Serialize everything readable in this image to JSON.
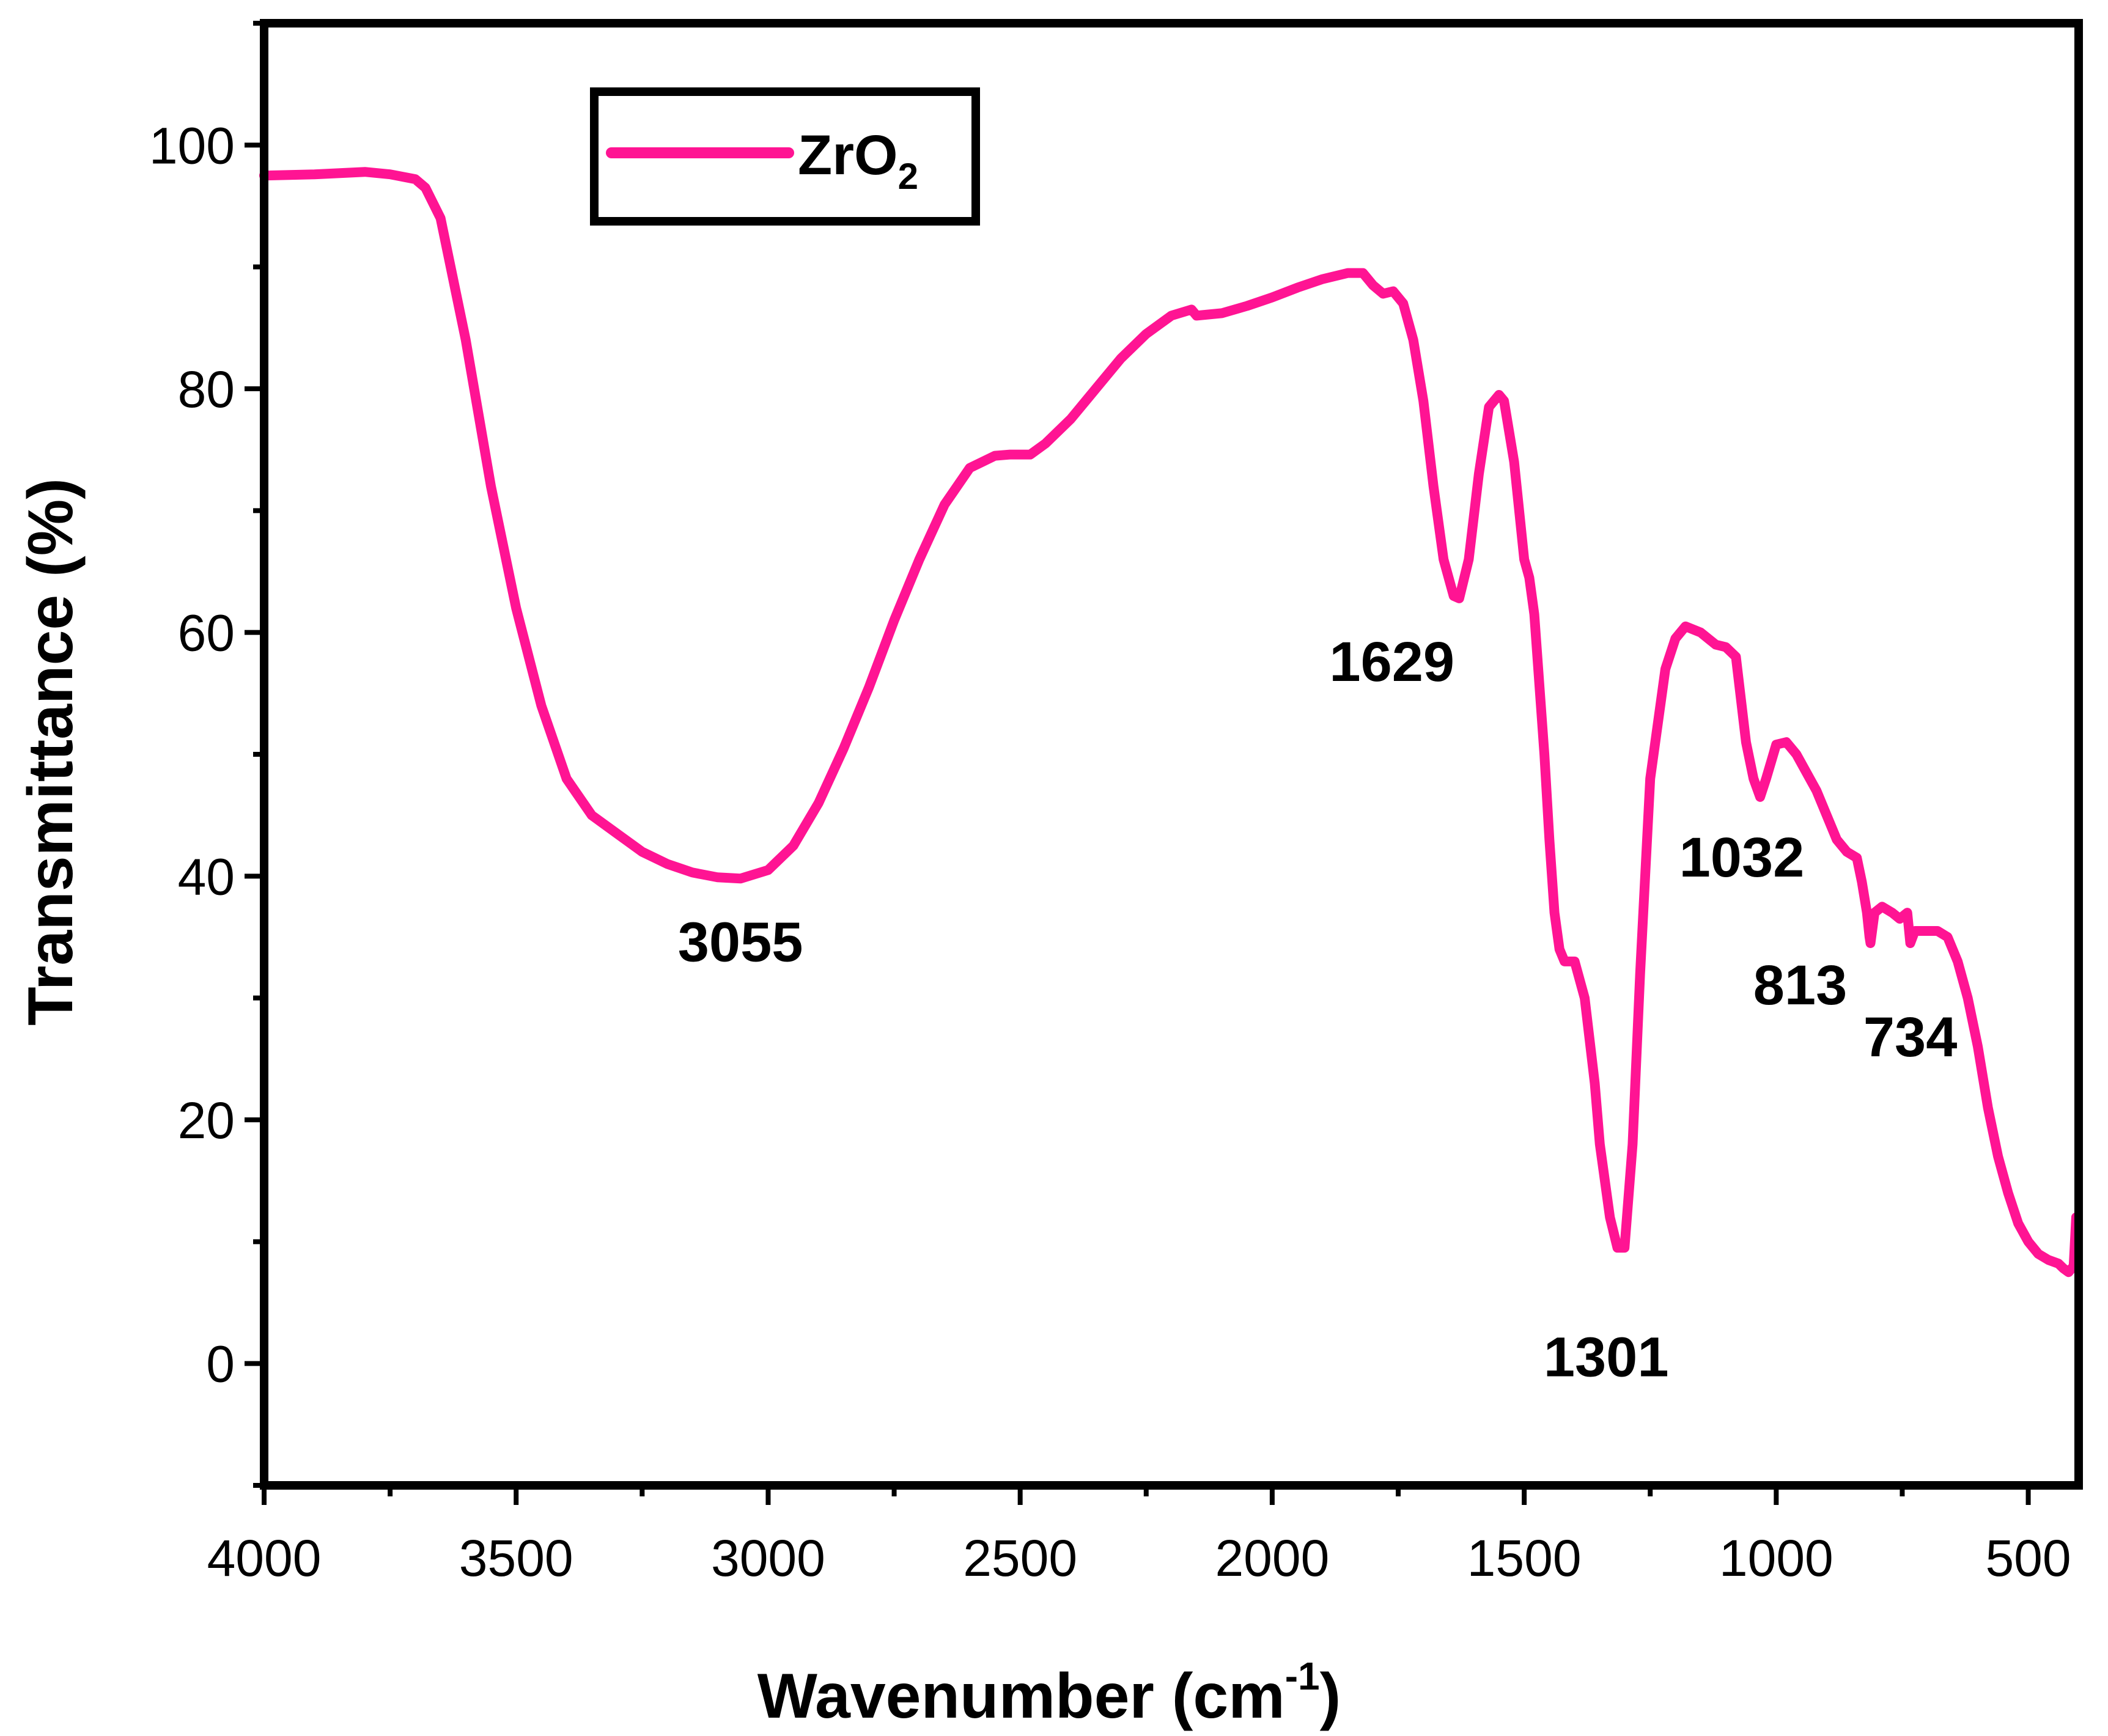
{
  "chart_data": {
    "type": "line",
    "title": "",
    "xlabel": "Wavenumber (cm",
    "xlabel_sup": "-1",
    "xlabel_close": ")",
    "ylabel": "Transmittance (%)",
    "xlim": [
      4000,
      400
    ],
    "ylim": [
      -10,
      110
    ],
    "x_ticks": [
      4000,
      3500,
      3000,
      2500,
      2000,
      1500,
      1000,
      500
    ],
    "x_tick_labels": [
      "4000",
      "3500",
      "3000",
      "2500",
      "2000",
      "1500",
      "1000",
      "500"
    ],
    "y_ticks": [
      0,
      20,
      40,
      60,
      80,
      100
    ],
    "y_tick_labels": [
      "0",
      "20",
      "40",
      "60",
      "80",
      "100"
    ],
    "legend": {
      "position": "top-left",
      "label_main": "ZrO",
      "label_sub": "2"
    },
    "series": [
      {
        "name": "ZrO2",
        "color": "#ff1493",
        "x": [
          4000,
          3900,
          3800,
          3750,
          3700,
          3680,
          3650,
          3600,
          3550,
          3500,
          3450,
          3400,
          3350,
          3300,
          3250,
          3200,
          3150,
          3100,
          3055,
          3000,
          2950,
          2900,
          2850,
          2800,
          2750,
          2700,
          2650,
          2600,
          2550,
          2520,
          2480,
          2450,
          2400,
          2350,
          2300,
          2250,
          2200,
          2160,
          2150,
          2100,
          2050,
          2000,
          1950,
          1900,
          1850,
          1820,
          1800,
          1780,
          1760,
          1740,
          1720,
          1700,
          1680,
          1660,
          1640,
          1629,
          1610,
          1590,
          1570,
          1550,
          1540,
          1520,
          1500,
          1490,
          1480,
          1460,
          1450,
          1440,
          1430,
          1420,
          1400,
          1380,
          1360,
          1350,
          1330,
          1315,
          1301,
          1285,
          1270,
          1250,
          1220,
          1200,
          1180,
          1150,
          1120,
          1100,
          1080,
          1060,
          1045,
          1032,
          1020,
          1000,
          980,
          960,
          940,
          920,
          900,
          880,
          860,
          840,
          830,
          820,
          815,
          813,
          805,
          790,
          770,
          755,
          740,
          734,
          725,
          700,
          680,
          660,
          640,
          620,
          600,
          580,
          560,
          540,
          520,
          500,
          480,
          460,
          440,
          430,
          420,
          410,
          405
        ],
        "y": [
          97.5,
          97.6,
          97.8,
          97.6,
          97.2,
          96.5,
          94,
          84,
          72,
          62,
          54,
          48,
          45,
          43.5,
          42,
          41,
          40.3,
          39.9,
          39.8,
          40.5,
          42.5,
          46,
          50.5,
          55.5,
          61,
          66,
          70.5,
          73.5,
          74.5,
          74.6,
          74.6,
          75.5,
          77.5,
          80,
          82.5,
          84.5,
          86,
          86.5,
          86,
          86.2,
          86.8,
          87.5,
          88.3,
          89,
          89.5,
          89.5,
          88.5,
          87.8,
          88,
          87,
          84,
          79,
          72,
          66,
          63,
          62.8,
          66,
          73,
          78.5,
          79.5,
          79,
          74,
          66,
          64.5,
          61.5,
          50,
          43,
          37,
          34,
          33,
          33,
          30,
          23,
          18,
          12,
          9.5,
          9.5,
          18,
          32,
          48,
          57,
          59.5,
          60.5,
          60,
          59,
          58.8,
          58,
          51,
          48,
          46.5,
          48,
          50.8,
          51,
          50,
          48.5,
          47,
          45,
          43,
          42,
          41.5,
          39.5,
          37,
          35,
          34.5,
          37,
          37.5,
          37,
          36.5,
          37,
          34.5,
          35.5,
          35.5,
          35.5,
          35,
          33,
          30,
          26,
          21,
          17,
          14,
          11.5,
          10,
          9,
          8.5,
          8.2,
          7.8,
          7.5,
          8,
          12
        ]
      }
    ],
    "annotations": [
      {
        "text": "3055",
        "x": 3055,
        "y": 39.8
      },
      {
        "text": "1629",
        "x": 1629,
        "y": 62.8
      },
      {
        "text": "1301",
        "x": 1301,
        "y": 9.5
      },
      {
        "text": "1032",
        "x": 1032,
        "y": 46.5
      },
      {
        "text": "813",
        "x": 813,
        "y": 34.5
      },
      {
        "text": "734",
        "x": 734,
        "y": 34.5
      }
    ]
  }
}
